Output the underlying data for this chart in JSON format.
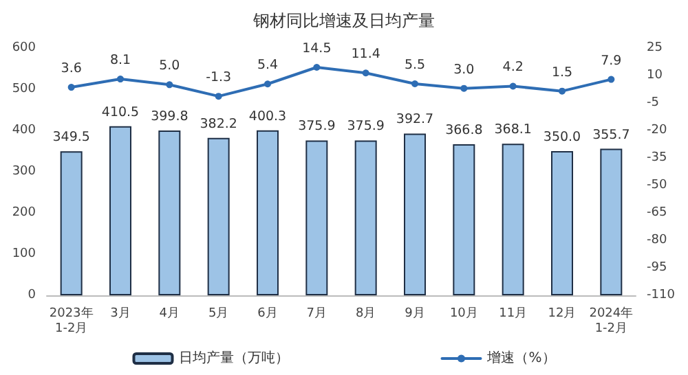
{
  "chart_data": {
    "type": "bar",
    "title": "钢材同比增速及日均产量",
    "categories": [
      "2023年\n1-2月",
      "3月",
      "4月",
      "5月",
      "6月",
      "7月",
      "8月",
      "9月",
      "10月",
      "11月",
      "12月",
      "2024年\n1-2月"
    ],
    "series": [
      {
        "name": "日均产量（万吨）",
        "color": "#9dc3e6",
        "values": [
          349.5,
          410.5,
          399.8,
          382.2,
          400.3,
          375.9,
          375.9,
          392.7,
          366.8,
          368.1,
          350.0,
          355.7
        ],
        "value_labels": [
          "349.5",
          "410.5",
          "399.8",
          "382.2",
          "400.3",
          "375.9",
          "375.9",
          "392.7",
          "366.8",
          "368.1",
          "350.0",
          "355.7"
        ]
      },
      {
        "name": "增速（%）",
        "type": "line",
        "axis": "y2",
        "color": "#2e6db4",
        "values": [
          3.6,
          8.1,
          5.0,
          -1.3,
          5.4,
          14.5,
          11.4,
          5.5,
          3.0,
          4.2,
          1.5,
          7.9
        ],
        "value_labels": [
          "3.6",
          "8.1",
          "5.0",
          "-1.3",
          "5.4",
          "14.5",
          "11.4",
          "5.5",
          "3.0",
          "4.2",
          "1.5",
          "7.9"
        ]
      }
    ],
    "ylim": [
      0,
      600
    ],
    "yticks": [
      0,
      100,
      200,
      300,
      400,
      500,
      600
    ],
    "y2lim": [
      -110,
      25
    ],
    "y2ticks": [
      -110,
      -95,
      -80,
      -65,
      -50,
      -35,
      -20,
      -5,
      10,
      25
    ],
    "grid": false,
    "legend": "bottom",
    "marker": "circle",
    "line_style": "solid"
  }
}
